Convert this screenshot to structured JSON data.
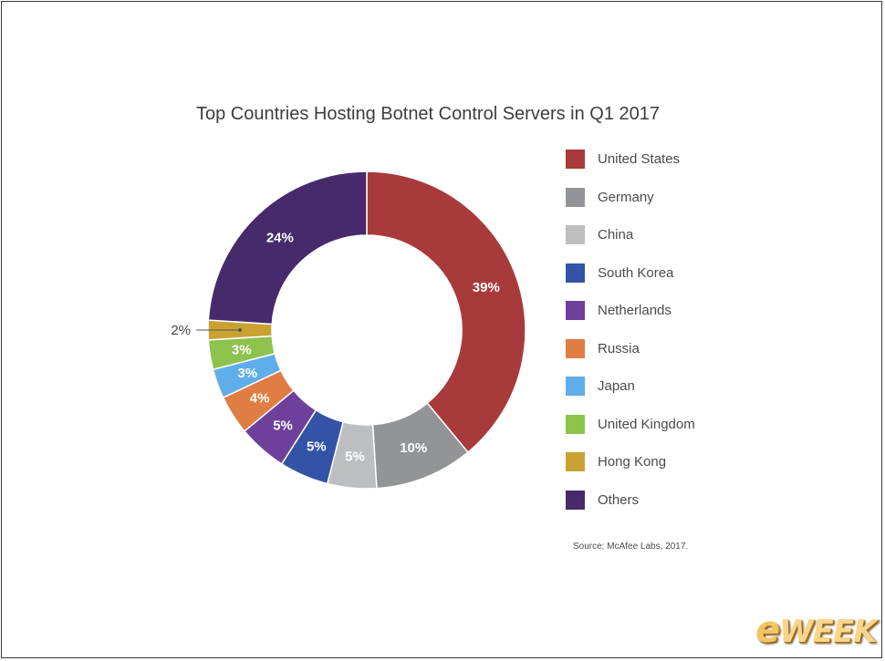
{
  "chart_data": {
    "type": "pie",
    "donut": true,
    "title": "Top Countries Hosting Botnet Control Servers in Q1 2017",
    "legend_position": "right",
    "series": [
      {
        "name": "United States",
        "value": 39,
        "label": "39%",
        "color": "#a93a3b"
      },
      {
        "name": "Germany",
        "value": 10,
        "label": "10%",
        "color": "#929497"
      },
      {
        "name": "China",
        "value": 5,
        "label": "5%",
        "color": "#bcbec0"
      },
      {
        "name": "South Korea",
        "value": 5,
        "label": "5%",
        "color": "#3353a7"
      },
      {
        "name": "Netherlands",
        "value": 5,
        "label": "5%",
        "color": "#6f3f9c"
      },
      {
        "name": "Russia",
        "value": 4,
        "label": "4%",
        "color": "#e07d43"
      },
      {
        "name": "Japan",
        "value": 3,
        "label": "3%",
        "color": "#5faee9"
      },
      {
        "name": "United Kingdom",
        "value": 3,
        "label": "3%",
        "color": "#8dc24d"
      },
      {
        "name": "Hong Kong",
        "value": 2,
        "label": "2%",
        "color": "#c9a232"
      },
      {
        "name": "Others",
        "value": 24,
        "label": "24%",
        "color": "#472a6b"
      }
    ]
  },
  "source": "Source: McAfee Labs, 2017.",
  "logo": {
    "prefix": "e",
    "text": "WEEK"
  }
}
